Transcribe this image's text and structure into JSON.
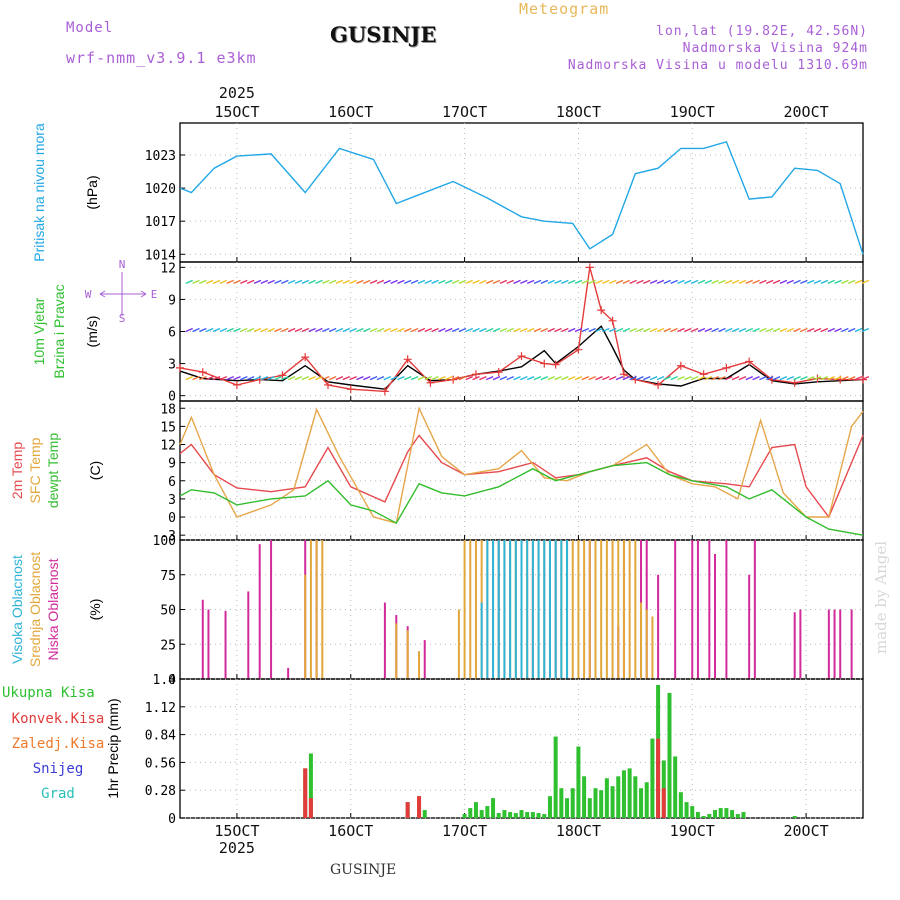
{
  "header": {
    "model_label": "Model",
    "model_version": "wrf-nmm_v3.9.1  e3km",
    "station_title": "GUSINJE",
    "meteogram_label": "Meteogram",
    "lonlat": "lon,lat (19.82E, 42.56N)",
    "elevation": "Nadmorska Visina 924m",
    "model_elevation": "Nadmorska Visina u modelu 1310.69m"
  },
  "footer": {
    "station": "GUSINJE",
    "watermark": "made by Angel"
  },
  "chart_data": [
    {
      "type": "line",
      "id": "pressure",
      "ylabel": [
        "Pritisak na nivou mora",
        "(hPa)"
      ],
      "ylim": [
        1013.3,
        1025.9
      ],
      "yticks": [
        1014,
        1017,
        1020,
        1023
      ],
      "series": [
        {
          "name": "Pritisak na nivou mora",
          "color": "#22a7e6",
          "x": [
            14.5,
            14.6,
            14.8,
            15.0,
            15.3,
            15.6,
            15.9,
            16.2,
            16.4,
            16.6,
            16.9,
            17.2,
            17.5,
            17.7,
            17.95,
            18.1,
            18.3,
            18.5,
            18.7,
            18.9,
            19.1,
            19.3,
            19.5,
            19.7,
            19.9,
            20.1,
            20.3,
            20.5
          ],
          "values": [
            1020.0,
            1019.6,
            1021.8,
            1022.9,
            1023.1,
            1019.6,
            1023.6,
            1022.6,
            1018.6,
            1019.4,
            1020.6,
            1019.1,
            1017.4,
            1017.0,
            1016.8,
            1014.5,
            1015.8,
            1021.3,
            1021.8,
            1023.6,
            1023.6,
            1024.2,
            1019.0,
            1019.2,
            1021.8,
            1021.6,
            1020.4,
            1014.0
          ]
        }
      ]
    },
    {
      "type": "line",
      "id": "wind",
      "ylabel": [
        "10m Vjetar",
        "Brzina i Pravac",
        "(m/s)"
      ],
      "compass": [
        "N",
        "E",
        "S",
        "W"
      ],
      "ylim": [
        -0.5,
        12.5
      ],
      "yticks": [
        0,
        3,
        6,
        9,
        12
      ],
      "series": [
        {
          "name": "Brzina",
          "color": "#000000",
          "x": [
            14.5,
            14.7,
            15.0,
            15.2,
            15.4,
            15.6,
            15.8,
            16.0,
            16.3,
            16.5,
            16.7,
            16.9,
            17.1,
            17.3,
            17.5,
            17.7,
            17.8,
            18.0,
            18.2,
            18.3,
            18.4,
            18.5,
            18.7,
            18.9,
            19.1,
            19.3,
            19.5,
            19.7,
            19.9,
            20.1,
            20.3,
            20.5
          ],
          "values": [
            2.3,
            1.6,
            1.4,
            1.5,
            1.4,
            2.8,
            1.3,
            1.0,
            0.6,
            2.8,
            1.4,
            1.5,
            2.0,
            2.3,
            2.7,
            4.2,
            3.0,
            4.6,
            6.5,
            4.5,
            2.4,
            1.5,
            1.1,
            0.9,
            1.6,
            1.6,
            2.9,
            1.4,
            1.1,
            1.3,
            1.4,
            1.5
          ]
        },
        {
          "name": "Udari",
          "color": "#e33b3b",
          "x": [
            14.5,
            14.7,
            15.0,
            15.2,
            15.4,
            15.6,
            15.8,
            16.0,
            16.3,
            16.5,
            16.7,
            16.9,
            17.1,
            17.3,
            17.5,
            17.7,
            17.8,
            18.0,
            18.1,
            18.2,
            18.3,
            18.4,
            18.5,
            18.7,
            18.9,
            19.1,
            19.3,
            19.5,
            19.7,
            19.9,
            20.1,
            20.3,
            20.5
          ],
          "values": [
            2.6,
            2.2,
            1.0,
            1.5,
            1.9,
            3.6,
            1.0,
            0.6,
            0.4,
            3.4,
            1.2,
            1.5,
            2.0,
            2.2,
            3.7,
            3.0,
            2.9,
            4.3,
            12.0,
            8.0,
            7.0,
            2.0,
            1.5,
            1.0,
            2.8,
            2.0,
            2.6,
            3.2,
            1.5,
            1.2,
            1.6,
            1.5,
            1.5
          ]
        }
      ]
    },
    {
      "type": "line",
      "id": "temperature",
      "ylabel": [
        "2m Temp",
        "SFC Temp",
        "dewpt Temp",
        "(C)"
      ],
      "ylim": [
        -3.8,
        19.2
      ],
      "yticks": [
        -3,
        0,
        3,
        6,
        9,
        12,
        15,
        18
      ],
      "series": [
        {
          "name": "2m Temp",
          "color": "#e6494e",
          "x": [
            14.5,
            14.6,
            14.8,
            15.0,
            15.3,
            15.6,
            15.8,
            16.0,
            16.3,
            16.5,
            16.6,
            16.8,
            17.0,
            17.3,
            17.6,
            17.8,
            18.0,
            18.3,
            18.6,
            18.8,
            19.0,
            19.3,
            19.5,
            19.7,
            19.9,
            20.0,
            20.2,
            20.5
          ],
          "values": [
            10.5,
            12.0,
            7.0,
            4.8,
            4.2,
            5.0,
            11.5,
            5.0,
            2.5,
            10.8,
            13.5,
            9.0,
            7.0,
            7.5,
            9.0,
            6.5,
            7.0,
            8.5,
            9.8,
            7.5,
            6.0,
            5.5,
            5.0,
            11.5,
            12.0,
            5.0,
            0.0,
            13.5
          ]
        },
        {
          "name": "SFC Temp",
          "color": "#e6a64a",
          "x": [
            14.5,
            14.6,
            14.8,
            15.0,
            15.3,
            15.5,
            15.7,
            15.9,
            16.2,
            16.4,
            16.6,
            16.8,
            17.0,
            17.3,
            17.5,
            17.7,
            17.9,
            18.1,
            18.3,
            18.6,
            18.8,
            19.0,
            19.2,
            19.4,
            19.6,
            19.8,
            20.0,
            20.2,
            20.4,
            20.5
          ],
          "values": [
            12.0,
            16.5,
            7.0,
            0.0,
            2.0,
            4.5,
            17.8,
            10.0,
            0.0,
            -1.0,
            18.0,
            10.0,
            7.0,
            8.0,
            11.0,
            6.5,
            6.0,
            7.5,
            8.5,
            12.0,
            7.0,
            5.5,
            5.0,
            3.0,
            16.0,
            4.0,
            0.0,
            0.0,
            15.0,
            17.5
          ]
        },
        {
          "name": "dewpt Temp",
          "color": "#33bd2e",
          "x": [
            14.5,
            14.6,
            14.8,
            15.0,
            15.3,
            15.6,
            15.8,
            16.0,
            16.2,
            16.4,
            16.6,
            16.8,
            17.0,
            17.3,
            17.6,
            17.8,
            18.0,
            18.3,
            18.6,
            18.8,
            19.0,
            19.3,
            19.5,
            19.7,
            20.0,
            20.2,
            20.5
          ],
          "values": [
            3.5,
            4.5,
            4.0,
            2.0,
            3.0,
            3.5,
            6.0,
            2.0,
            1.0,
            -1.0,
            5.5,
            4.0,
            3.5,
            5.0,
            8.0,
            6.0,
            7.0,
            8.5,
            9.0,
            7.0,
            6.0,
            5.0,
            3.0,
            4.5,
            0.0,
            -2.0,
            -3.0
          ]
        }
      ]
    },
    {
      "type": "bar",
      "id": "clouds",
      "ylabel": [
        "Visoka Oblacnost",
        "Srednja Oblacnost",
        "Niska Oblacnost",
        "(%)"
      ],
      "ylim": [
        0,
        100
      ],
      "yticks": [
        0,
        25,
        50,
        75,
        100
      ],
      "series": [
        {
          "name": "Niska Oblacnost",
          "color": "#d12b9b",
          "x": [
            14.7,
            14.75,
            14.9,
            15.1,
            15.2,
            15.3,
            15.45,
            15.6,
            15.7,
            16.3,
            16.4,
            16.5,
            16.65,
            17.3,
            17.6,
            17.8,
            17.9,
            18.1,
            18.35,
            18.4,
            18.55,
            18.6,
            18.7,
            18.85,
            19.0,
            19.05,
            19.15,
            19.2,
            19.3,
            19.5,
            19.55,
            19.9,
            19.95,
            20.2,
            20.25,
            20.3,
            20.4
          ],
          "values": [
            57,
            50,
            49,
            63,
            97,
            100,
            8,
            100,
            100,
            55,
            46,
            38,
            28,
            100,
            80,
            100,
            100,
            100,
            38,
            100,
            100,
            100,
            75,
            100,
            100,
            100,
            100,
            90,
            100,
            75,
            100,
            48,
            50,
            50,
            50,
            50,
            50
          ]
        },
        {
          "name": "Srednja Oblacnost",
          "color": "#e2a73a",
          "x": [
            15.6,
            15.65,
            15.7,
            15.75,
            16.4,
            16.5,
            16.6,
            16.95,
            17.0,
            17.05,
            17.1,
            17.15,
            17.2,
            17.25,
            17.3,
            17.35,
            17.4,
            17.45,
            17.5,
            17.55,
            17.6,
            17.65,
            17.7,
            17.75,
            17.8,
            17.85,
            17.9,
            17.95,
            18.0,
            18.05,
            18.1,
            18.15,
            18.2,
            18.25,
            18.3,
            18.35,
            18.4,
            18.45,
            18.5,
            18.55,
            18.6,
            18.65
          ],
          "values": [
            75,
            100,
            100,
            100,
            40,
            35,
            20,
            50,
            100,
            100,
            100,
            100,
            100,
            100,
            100,
            100,
            100,
            100,
            100,
            100,
            100,
            100,
            100,
            100,
            100,
            100,
            100,
            100,
            100,
            100,
            100,
            100,
            100,
            100,
            100,
            100,
            100,
            100,
            100,
            55,
            50,
            45
          ]
        },
        {
          "name": "Visoka Oblacnost",
          "color": "#2fb3d6",
          "x": [
            17.15,
            17.2,
            17.25,
            17.3,
            17.35,
            17.4,
            17.45,
            17.5,
            17.55,
            17.6,
            17.65,
            17.7,
            17.75,
            17.8,
            17.85,
            17.9
          ],
          "values": [
            55,
            100,
            100,
            100,
            100,
            100,
            100,
            100,
            100,
            100,
            100,
            100,
            100,
            100,
            100,
            100
          ]
        }
      ]
    },
    {
      "type": "bar",
      "id": "precip",
      "ylabel": [
        "1hr Precip (mm)"
      ],
      "legend": [
        "Ukupna Kisa",
        "Konvek.Kisa",
        "Zaledj.Kisa",
        "Snijeg",
        "Grad"
      ],
      "ylim": [
        0,
        1.4
      ],
      "yticks": [
        0,
        0.28,
        0.56,
        0.84,
        1.12,
        1.4
      ],
      "series": [
        {
          "name": "Ukupna Kisa",
          "color": "#2fc030",
          "x": [
            15.6,
            15.65,
            16.5,
            16.6,
            16.65,
            17.0,
            17.05,
            17.1,
            17.15,
            17.2,
            17.25,
            17.3,
            17.35,
            17.4,
            17.45,
            17.5,
            17.55,
            17.6,
            17.65,
            17.7,
            17.75,
            17.8,
            17.85,
            17.9,
            17.95,
            18.0,
            18.05,
            18.1,
            18.15,
            18.2,
            18.25,
            18.3,
            18.35,
            18.4,
            18.45,
            18.5,
            18.55,
            18.6,
            18.65,
            18.7,
            18.75,
            18.8,
            18.85,
            18.9,
            18.95,
            19.0,
            19.05,
            19.1,
            19.15,
            19.2,
            19.25,
            19.3,
            19.35,
            19.4,
            19.45,
            19.9
          ],
          "values": [
            0.5,
            0.65,
            0.16,
            0.22,
            0.08,
            0.04,
            0.1,
            0.16,
            0.08,
            0.12,
            0.2,
            0.05,
            0.08,
            0.06,
            0.05,
            0.08,
            0.06,
            0.06,
            0.05,
            0.04,
            0.22,
            0.82,
            0.3,
            0.2,
            0.3,
            0.72,
            0.42,
            0.2,
            0.3,
            0.28,
            0.4,
            0.32,
            0.42,
            0.48,
            0.5,
            0.42,
            0.3,
            0.36,
            0.8,
            1.34,
            0.58,
            1.26,
            0.62,
            0.26,
            0.16,
            0.12,
            0.06,
            0.02,
            0.04,
            0.08,
            0.1,
            0.1,
            0.08,
            0.04,
            0.06,
            0.02
          ]
        },
        {
          "name": "Konvek.Kisa",
          "color": "#e33b3b",
          "x": [
            15.6,
            15.65,
            16.5,
            16.6,
            18.7,
            18.75
          ],
          "values": [
            0.5,
            0.2,
            0.16,
            0.22,
            0.8,
            0.3
          ]
        }
      ]
    }
  ],
  "time_axis": {
    "year_label": "2025",
    "range": [
      14.5,
      20.5
    ],
    "ticks": [
      {
        "pos": 15.0,
        "label": "15OCT"
      },
      {
        "pos": 16.0,
        "label": "16OCT"
      },
      {
        "pos": 17.0,
        "label": "17OCT"
      },
      {
        "pos": 18.0,
        "label": "18OCT"
      },
      {
        "pos": 19.0,
        "label": "19OCT"
      },
      {
        "pos": 20.0,
        "label": "20OCT"
      }
    ]
  },
  "colors": {
    "purple": "#a95fd6",
    "gold": "#e8b85a",
    "pressure_label": "#22a7e6",
    "wind_label": "#2fc030",
    "grid": "#bbbbbb"
  }
}
